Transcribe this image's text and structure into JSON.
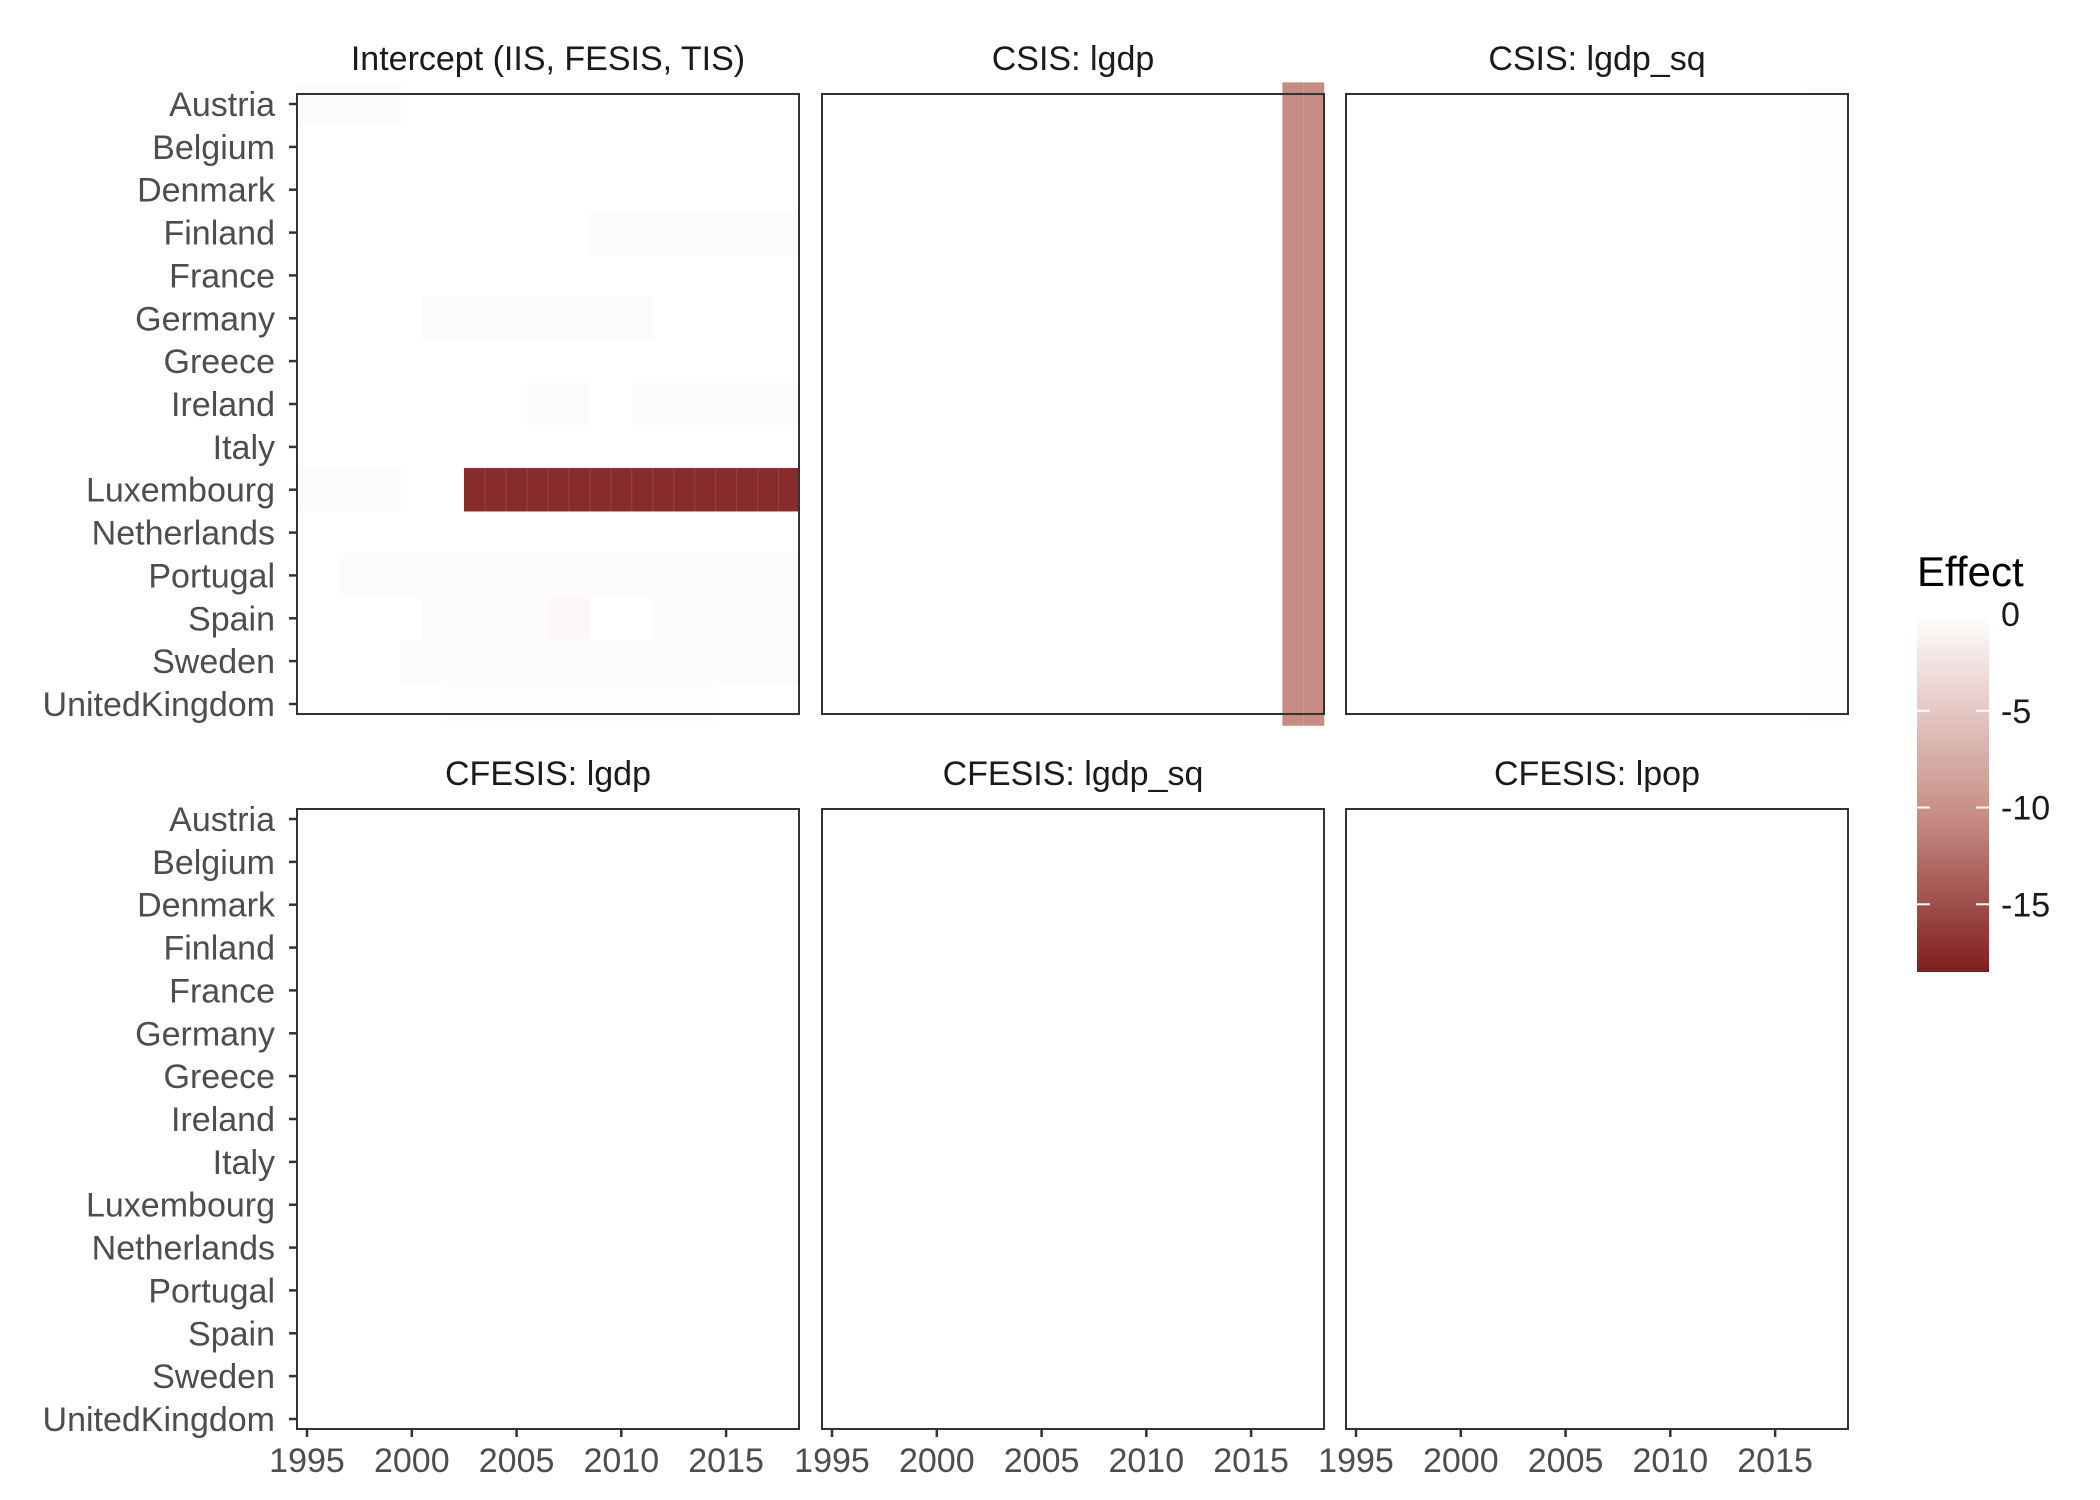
{
  "chart_data": {
    "type": "heatmap",
    "legend": {
      "title": "Effect",
      "ticks": [
        0,
        -5,
        -10,
        -15
      ],
      "range": [
        -18.5,
        0
      ],
      "colors": {
        "low": "#7f1f1f",
        "mid": "#c98f87",
        "high": "#ffffff"
      },
      "placement": "right"
    },
    "x_ticks": [
      "1995",
      "2000",
      "2005",
      "2010",
      "2015"
    ],
    "x_range": [
      1995,
      2018
    ],
    "countries": [
      "Austria",
      "Belgium",
      "Denmark",
      "Finland",
      "France",
      "Germany",
      "Greece",
      "Ireland",
      "Italy",
      "Luxembourg",
      "Netherlands",
      "Portugal",
      "Spain",
      "Sweden",
      "UnitedKingdom"
    ],
    "grid": false,
    "panels": [
      {
        "title": "Intercept (IIS, FESIS, TIS)",
        "cells": [
          {
            "country": "Luxembourg",
            "from": 2003,
            "to": 2018,
            "value": -17.5
          },
          {
            "country": "Austria",
            "from": 1995,
            "to": 1999,
            "value": -0.3
          },
          {
            "country": "Finland",
            "from": 2009,
            "to": 2018,
            "value": -0.3
          },
          {
            "country": "Germany",
            "from": 2001,
            "to": 2011,
            "value": -0.4
          },
          {
            "country": "Ireland",
            "from": 2006,
            "to": 2008,
            "value": -0.3
          },
          {
            "country": "Ireland",
            "from": 2011,
            "to": 2018,
            "value": -0.3
          },
          {
            "country": "Luxembourg",
            "from": 1995,
            "to": 1999,
            "value": -0.3
          },
          {
            "country": "Portugal",
            "from": 1997,
            "to": 2018,
            "value": -0.3
          },
          {
            "country": "Spain",
            "from": 2001,
            "to": 2007,
            "value": -0.4
          },
          {
            "country": "Spain",
            "from": 2007,
            "to": 2008,
            "value": -0.6
          },
          {
            "country": "Spain",
            "from": 2012,
            "to": 2018,
            "value": -0.3
          },
          {
            "country": "Sweden",
            "from": 2000,
            "to": 2018,
            "value": -0.3
          },
          {
            "country": "UnitedKingdom",
            "from": 2002,
            "to": 2014,
            "value": -0.2
          }
        ]
      },
      {
        "title": "CSIS: lgdp",
        "cells": [
          {
            "country": "Austria",
            "from": 2017,
            "to": 2018,
            "value": -10.5
          },
          {
            "country": "Belgium",
            "from": 2017,
            "to": 2018,
            "value": -10.5
          },
          {
            "country": "Denmark",
            "from": 2017,
            "to": 2018,
            "value": -10.5
          },
          {
            "country": "Finland",
            "from": 2017,
            "to": 2018,
            "value": -10.5
          },
          {
            "country": "France",
            "from": 2017,
            "to": 2018,
            "value": -10.5
          },
          {
            "country": "Germany",
            "from": 2017,
            "to": 2018,
            "value": -10.5
          },
          {
            "country": "Greece",
            "from": 2017,
            "to": 2018,
            "value": -10.5
          },
          {
            "country": "Ireland",
            "from": 2017,
            "to": 2018,
            "value": -10.5
          },
          {
            "country": "Italy",
            "from": 2017,
            "to": 2018,
            "value": -10.5
          },
          {
            "country": "Luxembourg",
            "from": 2017,
            "to": 2018,
            "value": -10.5
          },
          {
            "country": "Netherlands",
            "from": 2017,
            "to": 2018,
            "value": -10.5
          },
          {
            "country": "Portugal",
            "from": 2017,
            "to": 2018,
            "value": -10.5
          },
          {
            "country": "Spain",
            "from": 2017,
            "to": 2018,
            "value": -10.5
          },
          {
            "country": "Sweden",
            "from": 2017,
            "to": 2018,
            "value": -10.5
          },
          {
            "country": "UnitedKingdom",
            "from": 2017,
            "to": 2018,
            "value": -10.5
          }
        ]
      },
      {
        "title": "CSIS: lgdp_sq",
        "cells": [
          {
            "country": "Austria",
            "from": 2017,
            "to": 2018,
            "value": -0.2
          },
          {
            "country": "Belgium",
            "from": 2017,
            "to": 2018,
            "value": -0.2
          },
          {
            "country": "Denmark",
            "from": 2017,
            "to": 2018,
            "value": -0.2
          },
          {
            "country": "Finland",
            "from": 2017,
            "to": 2018,
            "value": -0.2
          },
          {
            "country": "France",
            "from": 2017,
            "to": 2018,
            "value": -0.2
          },
          {
            "country": "Germany",
            "from": 2017,
            "to": 2018,
            "value": -0.2
          },
          {
            "country": "Greece",
            "from": 2017,
            "to": 2018,
            "value": -0.2
          },
          {
            "country": "Ireland",
            "from": 2017,
            "to": 2018,
            "value": -0.2
          },
          {
            "country": "Italy",
            "from": 2017,
            "to": 2018,
            "value": -0.2
          },
          {
            "country": "Luxembourg",
            "from": 2017,
            "to": 2018,
            "value": -0.2
          },
          {
            "country": "Netherlands",
            "from": 2017,
            "to": 2018,
            "value": -0.2
          },
          {
            "country": "Portugal",
            "from": 2017,
            "to": 2018,
            "value": -0.2
          },
          {
            "country": "Spain",
            "from": 2017,
            "to": 2018,
            "value": -0.2
          },
          {
            "country": "Sweden",
            "from": 2017,
            "to": 2018,
            "value": -0.2
          },
          {
            "country": "UnitedKingdom",
            "from": 2017,
            "to": 2018,
            "value": -0.2
          }
        ]
      },
      {
        "title": "CFESIS: lgdp",
        "cells": []
      },
      {
        "title": "CFESIS: lgdp_sq",
        "cells": []
      },
      {
        "title": "CFESIS: lpop",
        "cells": []
      }
    ]
  }
}
